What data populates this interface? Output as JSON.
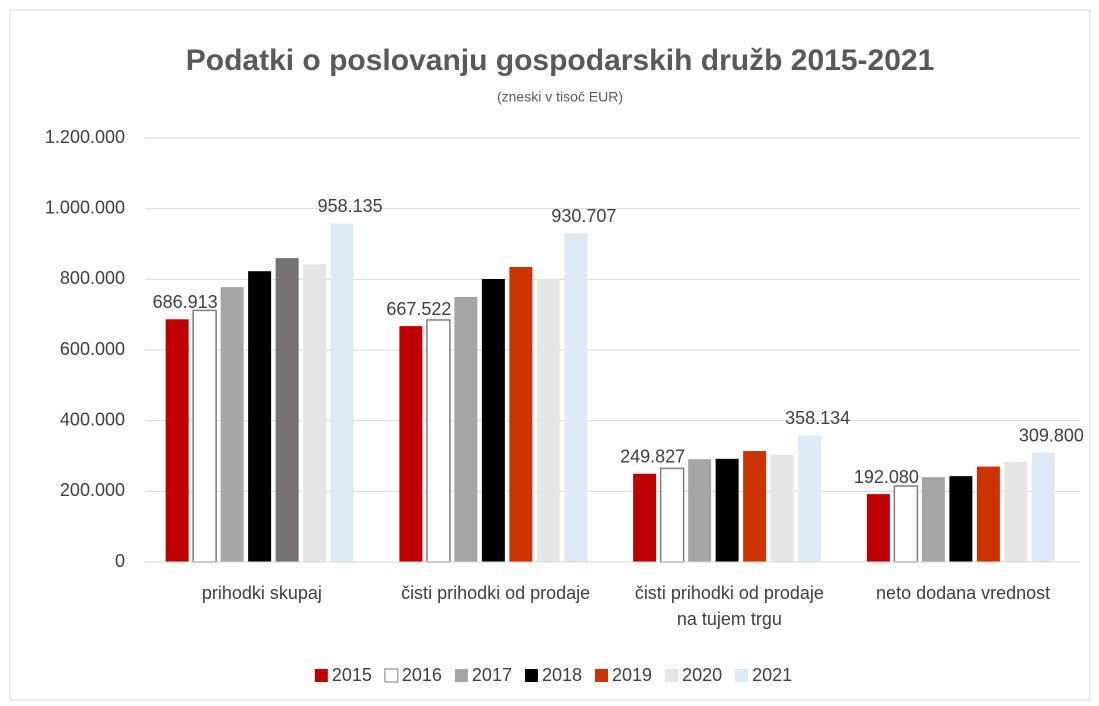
{
  "chart_data": {
    "type": "bar",
    "title": "Podatki o poslovanju gospodarskih družb 2015-2021",
    "subtitle": "(zneski v tisoč EUR)",
    "categories": [
      "prihodki skupaj",
      "čisti prihodki od prodaje",
      "čisti prihodki od prodaje na tujem trgu",
      "neto dodana vrednost"
    ],
    "series": [
      {
        "name": "2015",
        "color": "#c00000",
        "values": [
          686913,
          667522,
          249827,
          192080
        ],
        "value_labels": [
          "686.913",
          "667.522",
          "249.827",
          "192.080"
        ]
      },
      {
        "name": "2016",
        "color": "#ffffff",
        "border": "#7f7f7f",
        "values": [
          712000,
          685000,
          265000,
          215000
        ]
      },
      {
        "name": "2017",
        "color": "#a5a5a5",
        "values": [
          778000,
          750000,
          291000,
          240000
        ]
      },
      {
        "name": "2018",
        "color": "#000000",
        "values": [
          823000,
          801000,
          292000,
          243000
        ]
      },
      {
        "name": "2019",
        "color": "#cc3300",
        "colors": [
          "#767171",
          "#cc3300",
          "#cc3300",
          "#cc3300"
        ],
        "values": [
          860000,
          835000,
          314000,
          270000
        ]
      },
      {
        "name": "2020",
        "color": "#e7e6e6",
        "values": [
          843000,
          800000,
          303000,
          283000
        ]
      },
      {
        "name": "2021",
        "color": "#deebf7",
        "values": [
          958135,
          930707,
          358134,
          309800
        ],
        "value_labels": [
          "958.135",
          "930.707",
          "358.134",
          "309.800"
        ]
      }
    ],
    "ylim": [
      0,
      1200000
    ],
    "yticks": [
      0,
      {
        "value": 200000,
        "label": "200.000"
      },
      {
        "value": 400000,
        "label": "400.000"
      },
      {
        "value": 600000,
        "label": "600.000"
      },
      {
        "value": 800000,
        "label": "800.000"
      },
      {
        "value": 1000000,
        "label": "1.000.000"
      },
      {
        "value": 1200000,
        "label": "1.200.000"
      }
    ],
    "grid": true,
    "legend": "bottom"
  }
}
